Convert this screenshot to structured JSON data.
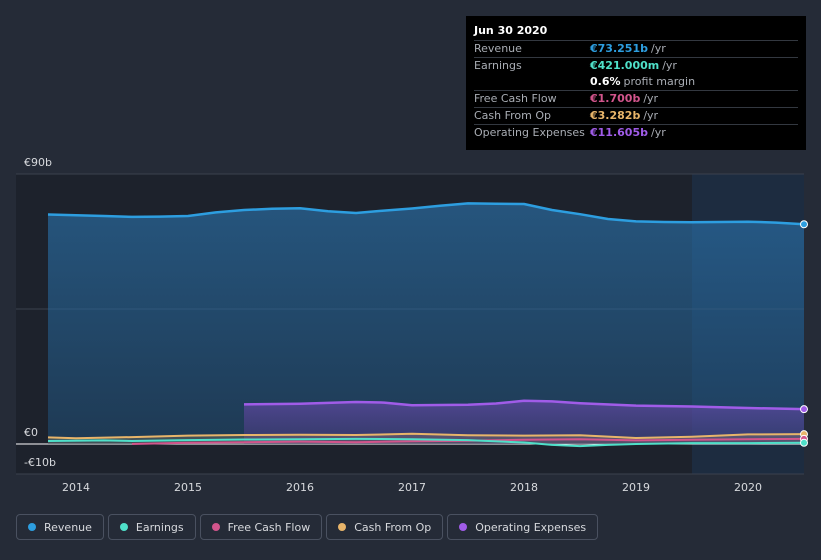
{
  "tooltip": {
    "date": "Jun 30 2020",
    "rows": {
      "revenue": {
        "label": "Revenue",
        "value": "€73.251b",
        "unit": "/yr",
        "color": "#2d9ee0"
      },
      "earnings": {
        "label": "Earnings",
        "value": "€421.000m",
        "unit": "/yr",
        "color": "#4fe0c9"
      },
      "margin": {
        "value": "0.6%",
        "unit": "profit margin",
        "color": "#ffffff"
      },
      "fcf": {
        "label": "Free Cash Flow",
        "value": "€1.700b",
        "unit": "/yr",
        "color": "#d2558c"
      },
      "cfo": {
        "label": "Cash From Op",
        "value": "€3.282b",
        "unit": "/yr",
        "color": "#e8b56a"
      },
      "opex": {
        "label": "Operating Expenses",
        "value": "€11.605b",
        "unit": "/yr",
        "color": "#a05ce8"
      }
    }
  },
  "legend": [
    {
      "label": "Revenue",
      "color": "#2d9ee0"
    },
    {
      "label": "Earnings",
      "color": "#4fe0c9"
    },
    {
      "label": "Free Cash Flow",
      "color": "#d2558c"
    },
    {
      "label": "Cash From Op",
      "color": "#e8b56a"
    },
    {
      "label": "Operating Expenses",
      "color": "#a05ce8"
    }
  ],
  "chart_data": {
    "type": "area",
    "title": "",
    "xlabel": "",
    "ylabel": "",
    "ylim": [
      -10,
      90
    ],
    "xlim": [
      2013.75,
      2020.5
    ],
    "y_tick_labels": [
      {
        "value": 90,
        "label": "€90b"
      },
      {
        "value": 0,
        "label": "€0"
      },
      {
        "value": -10,
        "label": "-€10b"
      }
    ],
    "x_ticks": [
      2014,
      2015,
      2016,
      2017,
      2018,
      2019,
      2020
    ],
    "forecast_start": 2019.5,
    "grid": true,
    "legend_position": "bottom",
    "series": [
      {
        "name": "Revenue",
        "color": "#2d9ee0",
        "x": [
          2013.75,
          2014.25,
          2014.5,
          2014.75,
          2015.0,
          2015.25,
          2015.5,
          2015.75,
          2016.0,
          2016.25,
          2016.5,
          2016.75,
          2017.0,
          2017.25,
          2017.5,
          2017.75,
          2018.0,
          2018.25,
          2018.5,
          2018.75,
          2019.0,
          2019.25,
          2019.5,
          2019.75,
          2020.0,
          2020.25,
          2020.5
        ],
        "y": [
          76.5,
          76.0,
          75.7,
          75.8,
          76.0,
          77.2,
          78.0,
          78.4,
          78.6,
          77.6,
          77.0,
          77.8,
          78.5,
          79.4,
          80.2,
          80.1,
          80.0,
          78.0,
          76.6,
          75.0,
          74.2,
          74.0,
          73.9,
          74.0,
          74.1,
          73.8,
          73.251
        ]
      },
      {
        "name": "Earnings",
        "color": "#4fe0c9",
        "x": [
          2013.75,
          2014.25,
          2014.5,
          2015.0,
          2015.5,
          2016.0,
          2016.5,
          2017.0,
          2017.5,
          2018.0,
          2018.25,
          2018.5,
          2018.75,
          2019.0,
          2019.5,
          2020.0,
          2020.5
        ],
        "y": [
          1.0,
          1.2,
          1.0,
          1.3,
          1.5,
          1.6,
          1.7,
          1.6,
          1.3,
          0.5,
          -0.3,
          -0.7,
          -0.3,
          0.0,
          0.3,
          0.3,
          0.421
        ]
      },
      {
        "name": "Free Cash Flow",
        "color": "#d2558c",
        "x": [
          2014.5,
          2015.0,
          2015.5,
          2016.0,
          2016.5,
          2017.0,
          2017.5,
          2018.0,
          2018.5,
          2019.0,
          2019.5,
          2020.0,
          2020.5
        ],
        "y": [
          0.0,
          0.4,
          0.6,
          0.8,
          0.6,
          0.9,
          1.1,
          1.4,
          1.6,
          1.2,
          1.4,
          1.6,
          1.7
        ]
      },
      {
        "name": "Cash From Op",
        "color": "#e8b56a",
        "x": [
          2013.75,
          2014.0,
          2014.5,
          2015.0,
          2015.5,
          2016.0,
          2016.5,
          2017.0,
          2017.5,
          2018.0,
          2018.5,
          2019.0,
          2019.5,
          2020.0,
          2020.5
        ],
        "y": [
          2.2,
          1.9,
          2.3,
          2.8,
          3.0,
          3.1,
          3.0,
          3.4,
          2.9,
          2.8,
          2.9,
          2.0,
          2.4,
          3.2,
          3.282
        ]
      },
      {
        "name": "Operating Expenses",
        "color": "#a05ce8",
        "x": [
          2015.5,
          2016.0,
          2016.25,
          2016.5,
          2016.75,
          2017.0,
          2017.25,
          2017.5,
          2017.75,
          2018.0,
          2018.25,
          2018.5,
          2019.0,
          2019.5,
          2020.0,
          2020.5
        ],
        "y": [
          13.2,
          13.4,
          13.7,
          14.0,
          13.8,
          12.9,
          13.0,
          13.1,
          13.5,
          14.4,
          14.2,
          13.6,
          12.8,
          12.5,
          12.0,
          11.605
        ]
      }
    ]
  }
}
